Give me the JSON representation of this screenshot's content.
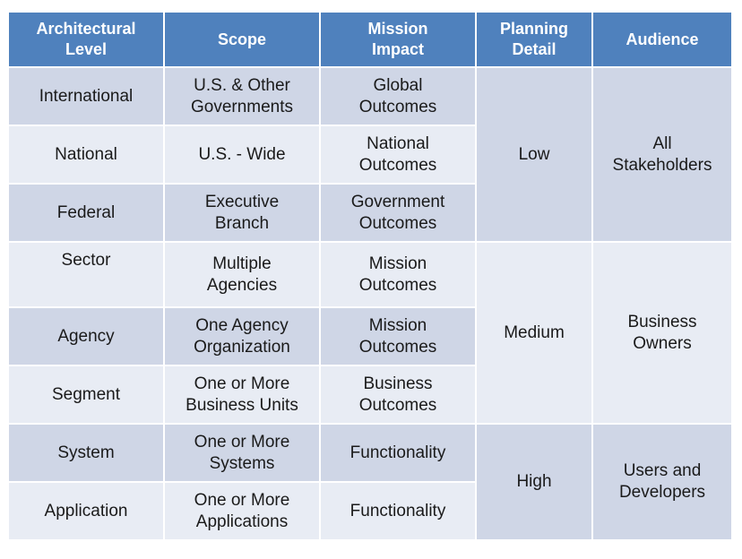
{
  "headers": [
    "Architectural\nLevel",
    "Scope",
    "Mission\nImpact",
    "Planning\nDetail",
    "Audience"
  ],
  "rows": [
    {
      "level": "International",
      "scope": "U.S. & Other\nGovernments",
      "impact": "Global\nOutcomes"
    },
    {
      "level": "National",
      "scope": "U.S. - Wide",
      "impact": "National\nOutcomes"
    },
    {
      "level": "Federal",
      "scope": "Executive\nBranch",
      "impact": "Government\nOutcomes"
    },
    {
      "level": "Sector",
      "scope": "Multiple\nAgencies",
      "impact": "Mission\nOutcomes"
    },
    {
      "level": "Agency",
      "scope": "One Agency\nOrganization",
      "impact": "Mission\nOutcomes"
    },
    {
      "level": "Segment",
      "scope": "One or More\nBusiness Units",
      "impact": "Business\nOutcomes"
    },
    {
      "level": "System",
      "scope": "One or More\nSystems",
      "impact": "Functionality"
    },
    {
      "level": "Application",
      "scope": "One or More\nApplications",
      "impact": "Functionality"
    }
  ],
  "groups": [
    {
      "planning": "Low",
      "audience": "All\nStakeholders"
    },
    {
      "planning": "Medium",
      "audience": "Business\nOwners"
    },
    {
      "planning": "High",
      "audience": "Users and\nDevelopers"
    }
  ]
}
